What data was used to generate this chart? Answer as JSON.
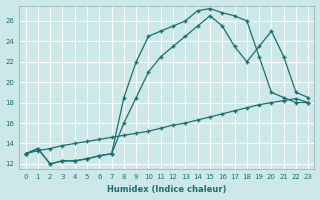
{
  "xlabel": "Humidex (Indice chaleur)",
  "bg_color": "#cde8e8",
  "line_color": "#1a7070",
  "grid_color": "#b0d0d0",
  "xlim": [
    -0.5,
    23.5
  ],
  "ylim": [
    11.5,
    27.5
  ],
  "yticks": [
    12,
    14,
    16,
    18,
    20,
    22,
    24,
    26
  ],
  "xticks": [
    0,
    1,
    2,
    3,
    4,
    5,
    6,
    7,
    8,
    9,
    10,
    11,
    12,
    13,
    14,
    15,
    16,
    17,
    18,
    19,
    20,
    21,
    22,
    23
  ],
  "line1_x": [
    0,
    1,
    2,
    3,
    4,
    5,
    6,
    7,
    8,
    9,
    10,
    11,
    12,
    13,
    14,
    15,
    16,
    17,
    18,
    19,
    20,
    21,
    22,
    23
  ],
  "line1_y": [
    13.0,
    13.5,
    12.0,
    12.3,
    12.3,
    12.5,
    12.8,
    13.0,
    18.5,
    22.0,
    24.5,
    25.0,
    25.5,
    26.0,
    27.0,
    27.2,
    26.8,
    26.5,
    26.0,
    22.5,
    19.0,
    18.5,
    18.0,
    18.0
  ],
  "line2_x": [
    0,
    1,
    2,
    3,
    4,
    5,
    6,
    7,
    8,
    9,
    10,
    11,
    12,
    13,
    14,
    15,
    16,
    17,
    18,
    19,
    20,
    21,
    22,
    23
  ],
  "line2_y": [
    13.0,
    13.5,
    12.0,
    12.3,
    12.3,
    12.5,
    12.8,
    13.0,
    16.0,
    18.5,
    21.0,
    22.5,
    23.5,
    24.5,
    25.5,
    26.5,
    25.5,
    23.5,
    22.0,
    23.5,
    25.0,
    22.5,
    19.0,
    18.5
  ],
  "line3_x": [
    0,
    1,
    2,
    3,
    4,
    5,
    6,
    7,
    8,
    9,
    10,
    11,
    12,
    13,
    14,
    15,
    16,
    17,
    18,
    19,
    20,
    21,
    22,
    23
  ],
  "line3_y": [
    13.0,
    13.3,
    13.5,
    13.8,
    14.0,
    14.2,
    14.4,
    14.6,
    14.8,
    15.0,
    15.2,
    15.5,
    15.8,
    16.0,
    16.3,
    16.6,
    16.9,
    17.2,
    17.5,
    17.8,
    18.0,
    18.2,
    18.4,
    18.0
  ]
}
